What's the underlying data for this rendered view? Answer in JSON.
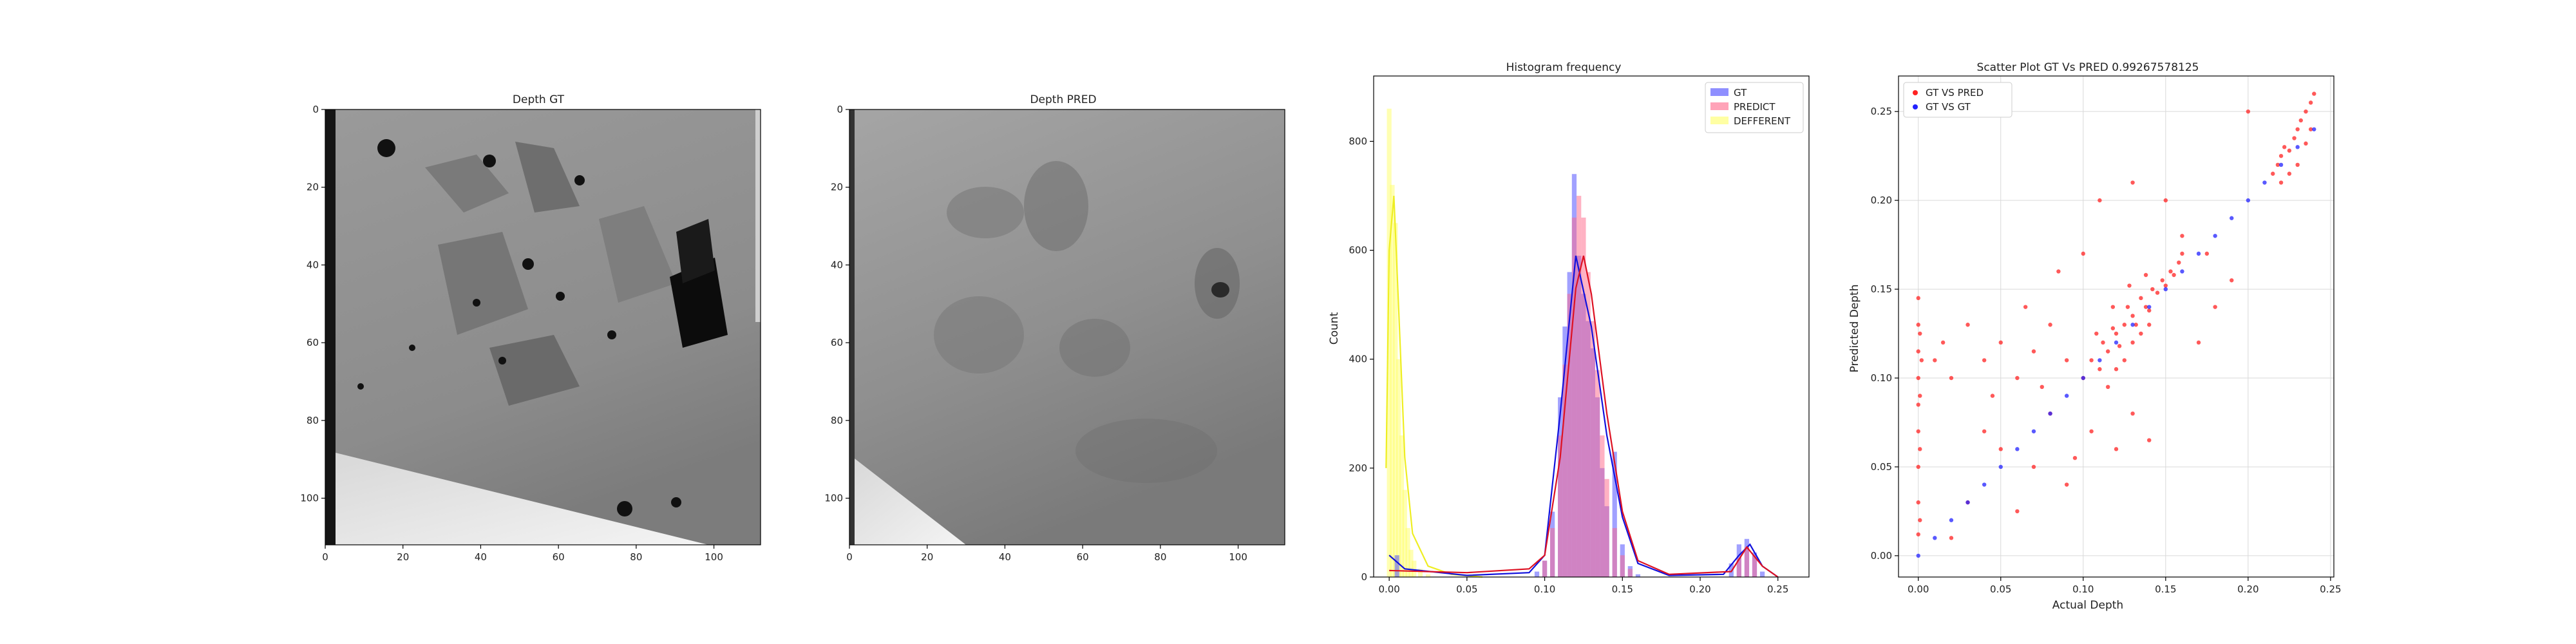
{
  "chart_data": [
    {
      "type": "heatmap",
      "title": "Depth GT",
      "xticks": [
        0,
        20,
        40,
        60,
        80,
        100
      ],
      "yticks": [
        0,
        20,
        40,
        60,
        80,
        100
      ],
      "xlim": [
        0,
        112
      ],
      "ylim": [
        112,
        0
      ],
      "colormap": "gray",
      "grid": false
    },
    {
      "type": "heatmap",
      "title": "Depth PRED",
      "xticks": [
        0,
        20,
        40,
        60,
        80,
        100
      ],
      "yticks": [
        0,
        20,
        40,
        60,
        80,
        100
      ],
      "xlim": [
        0,
        112
      ],
      "ylim": [
        112,
        0
      ],
      "colormap": "gray",
      "grid": false
    },
    {
      "type": "bar",
      "title": "Histogram frequency",
      "xlabel": "",
      "ylabel": "Count",
      "xlim": [
        -0.01,
        0.27
      ],
      "ylim": [
        0,
        920
      ],
      "xticks": [
        "0.00",
        "0.05",
        "0.10",
        "0.15",
        "0.20",
        "0.25"
      ],
      "yticks": [
        "0",
        "200",
        "400",
        "600",
        "800"
      ],
      "legend_position": "top-right",
      "series": [
        {
          "name": "GT",
          "color": "#4444ff",
          "x": [
            0.005,
            0.095,
            0.1,
            0.105,
            0.11,
            0.113,
            0.116,
            0.119,
            0.122,
            0.125,
            0.128,
            0.131,
            0.134,
            0.137,
            0.14,
            0.145,
            0.15,
            0.155,
            0.16,
            0.22,
            0.225,
            0.23,
            0.235,
            0.24
          ],
          "values": [
            40,
            10,
            30,
            120,
            330,
            460,
            560,
            740,
            590,
            520,
            470,
            420,
            330,
            200,
            130,
            230,
            60,
            20,
            5,
            25,
            60,
            70,
            45,
            10
          ],
          "kde": [
            [
              0.0,
              40
            ],
            [
              0.01,
              15
            ],
            [
              0.05,
              3
            ],
            [
              0.09,
              8
            ],
            [
              0.1,
              40
            ],
            [
              0.11,
              300
            ],
            [
              0.12,
              590
            ],
            [
              0.13,
              460
            ],
            [
              0.14,
              260
            ],
            [
              0.15,
              110
            ],
            [
              0.16,
              25
            ],
            [
              0.18,
              3
            ],
            [
              0.215,
              5
            ],
            [
              0.225,
              40
            ],
            [
              0.232,
              60
            ],
            [
              0.24,
              20
            ],
            [
              0.25,
              0
            ]
          ]
        },
        {
          "name": "PREDICT",
          "color": "#ff6688",
          "x": [
            0.1,
            0.105,
            0.11,
            0.113,
            0.116,
            0.119,
            0.122,
            0.125,
            0.128,
            0.131,
            0.134,
            0.137,
            0.14,
            0.145,
            0.15,
            0.155,
            0.225,
            0.23,
            0.235
          ],
          "values": [
            30,
            90,
            260,
            390,
            520,
            660,
            700,
            660,
            560,
            470,
            380,
            260,
            180,
            90,
            40,
            15,
            35,
            55,
            40
          ],
          "kde": [
            [
              0.0,
              12
            ],
            [
              0.05,
              8
            ],
            [
              0.09,
              15
            ],
            [
              0.1,
              40
            ],
            [
              0.11,
              220
            ],
            [
              0.12,
              530
            ],
            [
              0.125,
              590
            ],
            [
              0.13,
              520
            ],
            [
              0.14,
              300
            ],
            [
              0.15,
              120
            ],
            [
              0.16,
              30
            ],
            [
              0.18,
              5
            ],
            [
              0.22,
              10
            ],
            [
              0.23,
              55
            ],
            [
              0.24,
              20
            ],
            [
              0.25,
              0
            ]
          ]
        },
        {
          "name": "DEFFERENT",
          "color": "#ffff66",
          "x": [
            0.0,
            0.002,
            0.004,
            0.006,
            0.008,
            0.01,
            0.012,
            0.014,
            0.016,
            0.02,
            0.025
          ],
          "values": [
            860,
            720,
            650,
            400,
            260,
            160,
            90,
            50,
            30,
            15,
            5
          ],
          "kde": [
            [
              -0.002,
              200
            ],
            [
              0.0,
              600
            ],
            [
              0.003,
              700
            ],
            [
              0.006,
              500
            ],
            [
              0.01,
              220
            ],
            [
              0.015,
              80
            ],
            [
              0.025,
              20
            ],
            [
              0.04,
              5
            ],
            [
              0.06,
              0
            ]
          ]
        }
      ]
    },
    {
      "type": "scatter",
      "title": "Scatter Plot GT Vs PRED 0.99267578125",
      "xlabel": "Actual Depth",
      "ylabel": "Predicted Depth",
      "xlim": [
        -0.012,
        0.252
      ],
      "ylim": [
        -0.012,
        0.27
      ],
      "xticks": [
        "0.00",
        "0.05",
        "0.10",
        "0.15",
        "0.20",
        "0.25"
      ],
      "yticks": [
        "0.00",
        "0.05",
        "0.10",
        "0.15",
        "0.20",
        "0.25"
      ],
      "grid": true,
      "legend_position": "top-left",
      "series": [
        {
          "name": "GT VS PRED",
          "color": "#ff2222",
          "points": [
            [
              0.0,
              0.012
            ],
            [
              0.0,
              0.03
            ],
            [
              0.0,
              0.05
            ],
            [
              0.0,
              0.07
            ],
            [
              0.0,
              0.085
            ],
            [
              0.0,
              0.1
            ],
            [
              0.0,
              0.115
            ],
            [
              0.0,
              0.13
            ],
            [
              0.0,
              0.145
            ],
            [
              0.001,
              0.02
            ],
            [
              0.001,
              0.06
            ],
            [
              0.001,
              0.09
            ],
            [
              0.002,
              0.11
            ],
            [
              0.001,
              0.125
            ],
            [
              0.01,
              0.11
            ],
            [
              0.015,
              0.12
            ],
            [
              0.02,
              0.1
            ],
            [
              0.03,
              0.13
            ],
            [
              0.04,
              0.11
            ],
            [
              0.05,
              0.12
            ],
            [
              0.06,
              0.1
            ],
            [
              0.07,
              0.115
            ],
            [
              0.08,
              0.13
            ],
            [
              0.09,
              0.11
            ],
            [
              0.065,
              0.14
            ],
            [
              0.045,
              0.09
            ],
            [
              0.03,
              0.03
            ],
            [
              0.05,
              0.06
            ],
            [
              0.07,
              0.05
            ],
            [
              0.09,
              0.04
            ],
            [
              0.02,
              0.01
            ],
            [
              0.06,
              0.025
            ],
            [
              0.08,
              0.08
            ],
            [
              0.04,
              0.07
            ],
            [
              0.095,
              0.055
            ],
            [
              0.075,
              0.095
            ],
            [
              0.1,
              0.1
            ],
            [
              0.105,
              0.11
            ],
            [
              0.11,
              0.105
            ],
            [
              0.112,
              0.12
            ],
            [
              0.115,
              0.115
            ],
            [
              0.118,
              0.128
            ],
            [
              0.12,
              0.125
            ],
            [
              0.122,
              0.118
            ],
            [
              0.125,
              0.13
            ],
            [
              0.127,
              0.14
            ],
            [
              0.13,
              0.135
            ],
            [
              0.132,
              0.13
            ],
            [
              0.135,
              0.145
            ],
            [
              0.138,
              0.14
            ],
            [
              0.14,
              0.138
            ],
            [
              0.142,
              0.15
            ],
            [
              0.145,
              0.148
            ],
            [
              0.148,
              0.155
            ],
            [
              0.15,
              0.152
            ],
            [
              0.153,
              0.16
            ],
            [
              0.155,
              0.158
            ],
            [
              0.158,
              0.165
            ],
            [
              0.16,
              0.17
            ],
            [
              0.115,
              0.095
            ],
            [
              0.12,
              0.105
            ],
            [
              0.125,
              0.11
            ],
            [
              0.13,
              0.12
            ],
            [
              0.135,
              0.125
            ],
            [
              0.14,
              0.13
            ],
            [
              0.108,
              0.125
            ],
            [
              0.118,
              0.14
            ],
            [
              0.128,
              0.152
            ],
            [
              0.138,
              0.158
            ],
            [
              0.105,
              0.07
            ],
            [
              0.12,
              0.06
            ],
            [
              0.13,
              0.08
            ],
            [
              0.14,
              0.065
            ],
            [
              0.11,
              0.2
            ],
            [
              0.13,
              0.21
            ],
            [
              0.15,
              0.2
            ],
            [
              0.1,
              0.17
            ],
            [
              0.085,
              0.16
            ],
            [
              0.17,
              0.12
            ],
            [
              0.18,
              0.14
            ],
            [
              0.19,
              0.155
            ],
            [
              0.2,
              0.25
            ],
            [
              0.16,
              0.18
            ],
            [
              0.175,
              0.17
            ],
            [
              0.215,
              0.215
            ],
            [
              0.218,
              0.22
            ],
            [
              0.22,
              0.225
            ],
            [
              0.222,
              0.23
            ],
            [
              0.225,
              0.228
            ],
            [
              0.228,
              0.235
            ],
            [
              0.23,
              0.24
            ],
            [
              0.232,
              0.245
            ],
            [
              0.235,
              0.25
            ],
            [
              0.238,
              0.255
            ],
            [
              0.24,
              0.26
            ],
            [
              0.225,
              0.215
            ],
            [
              0.23,
              0.22
            ],
            [
              0.235,
              0.232
            ],
            [
              0.238,
              0.24
            ],
            [
              0.22,
              0.21
            ]
          ]
        },
        {
          "name": "GT VS GT",
          "color": "#2222ff",
          "points": [
            [
              0.0,
              0.0
            ],
            [
              0.01,
              0.01
            ],
            [
              0.02,
              0.02
            ],
            [
              0.03,
              0.03
            ],
            [
              0.04,
              0.04
            ],
            [
              0.05,
              0.05
            ],
            [
              0.06,
              0.06
            ],
            [
              0.07,
              0.07
            ],
            [
              0.08,
              0.08
            ],
            [
              0.09,
              0.09
            ],
            [
              0.1,
              0.1
            ],
            [
              0.11,
              0.11
            ],
            [
              0.12,
              0.12
            ],
            [
              0.13,
              0.13
            ],
            [
              0.14,
              0.14
            ],
            [
              0.15,
              0.15
            ],
            [
              0.16,
              0.16
            ],
            [
              0.17,
              0.17
            ],
            [
              0.18,
              0.18
            ],
            [
              0.19,
              0.19
            ],
            [
              0.2,
              0.2
            ],
            [
              0.21,
              0.21
            ],
            [
              0.22,
              0.22
            ],
            [
              0.23,
              0.23
            ],
            [
              0.24,
              0.24
            ]
          ]
        }
      ]
    }
  ]
}
